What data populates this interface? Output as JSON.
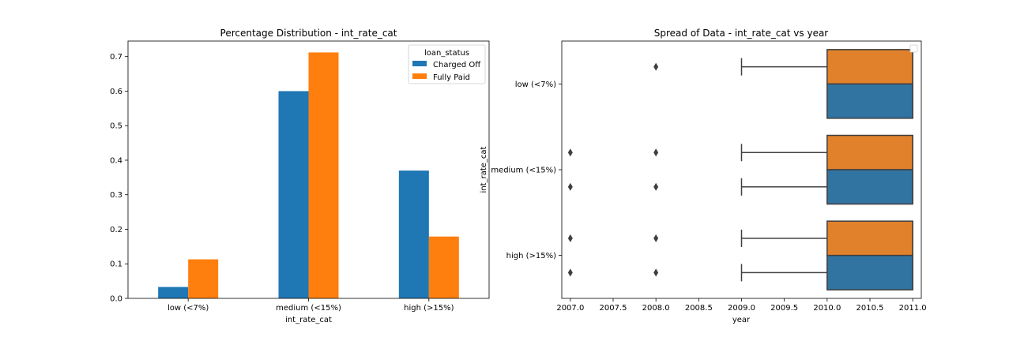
{
  "chart_data": [
    {
      "type": "bar",
      "title": "Percentage Distribution - int_rate_cat",
      "xlabel": "int_rate_cat",
      "ylabel": "",
      "categories": [
        "low (<7%)",
        "medium (<15%)",
        "high (>15%)"
      ],
      "ylim": [
        0,
        0.745
      ],
      "yticks": [
        0.0,
        0.1,
        0.2,
        0.3,
        0.4,
        0.5,
        0.6,
        0.7
      ],
      "ytick_labels": [
        "0.0",
        "0.1",
        "0.2",
        "0.3",
        "0.4",
        "0.5",
        "0.6",
        "0.7"
      ],
      "legend": {
        "title": "loan_status",
        "placement": "upper right"
      },
      "series": [
        {
          "name": "Charged Off",
          "color": "#1f77b4",
          "values": [
            0.033,
            0.6,
            0.37
          ]
        },
        {
          "name": "Fully Paid",
          "color": "#ff7f0e",
          "values": [
            0.113,
            0.712,
            0.179
          ]
        }
      ]
    },
    {
      "type": "boxplot",
      "title": "Spread of Data - int_rate_cat vs year",
      "xlabel": "year",
      "ylabel": "int_rate_cat",
      "categories": [
        "low (<7%)",
        "medium (<15%)",
        "high (>15%)"
      ],
      "xlim": [
        2006.9,
        2011.1
      ],
      "xticks": [
        2007.0,
        2007.5,
        2008.0,
        2008.5,
        2009.0,
        2009.5,
        2010.0,
        2010.5,
        2011.0
      ],
      "xtick_labels": [
        "2007.0",
        "2007.5",
        "2008.0",
        "2008.5",
        "2009.0",
        "2009.5",
        "2010.0",
        "2010.5",
        "2011.0"
      ],
      "legend": {
        "placement": "upper right",
        "entries": []
      },
      "series": [
        {
          "color": "#e1812c",
          "boxes": [
            {
              "category": "low (<7%)",
              "whisker_low": 2009,
              "q1": 2010,
              "median": 2011,
              "q3": 2011,
              "whisker_high": 2011,
              "outliers": [
                2008
              ]
            },
            {
              "category": "medium (<15%)",
              "whisker_low": 2009,
              "q1": 2010,
              "median": 2011,
              "q3": 2011,
              "whisker_high": 2011,
              "outliers": [
                2007,
                2008
              ]
            },
            {
              "category": "high (>15%)",
              "whisker_low": 2009,
              "q1": 2010,
              "median": 2011,
              "q3": 2011,
              "whisker_high": 2011,
              "outliers": [
                2007,
                2008
              ]
            }
          ]
        },
        {
          "color": "#3274a1",
          "boxes": [
            {
              "category": "low (<7%)",
              "whisker_low": 2010,
              "q1": 2010,
              "median": 2011,
              "q3": 2011,
              "whisker_high": 2011,
              "outliers": []
            },
            {
              "category": "medium (<15%)",
              "whisker_low": 2009,
              "q1": 2010,
              "median": 2011,
              "q3": 2011,
              "whisker_high": 2011,
              "outliers": [
                2007,
                2008
              ]
            },
            {
              "category": "high (>15%)",
              "whisker_low": 2009,
              "q1": 2010,
              "median": 2011,
              "q3": 2011,
              "whisker_high": 2011,
              "outliers": [
                2007,
                2008
              ]
            }
          ]
        }
      ]
    }
  ]
}
